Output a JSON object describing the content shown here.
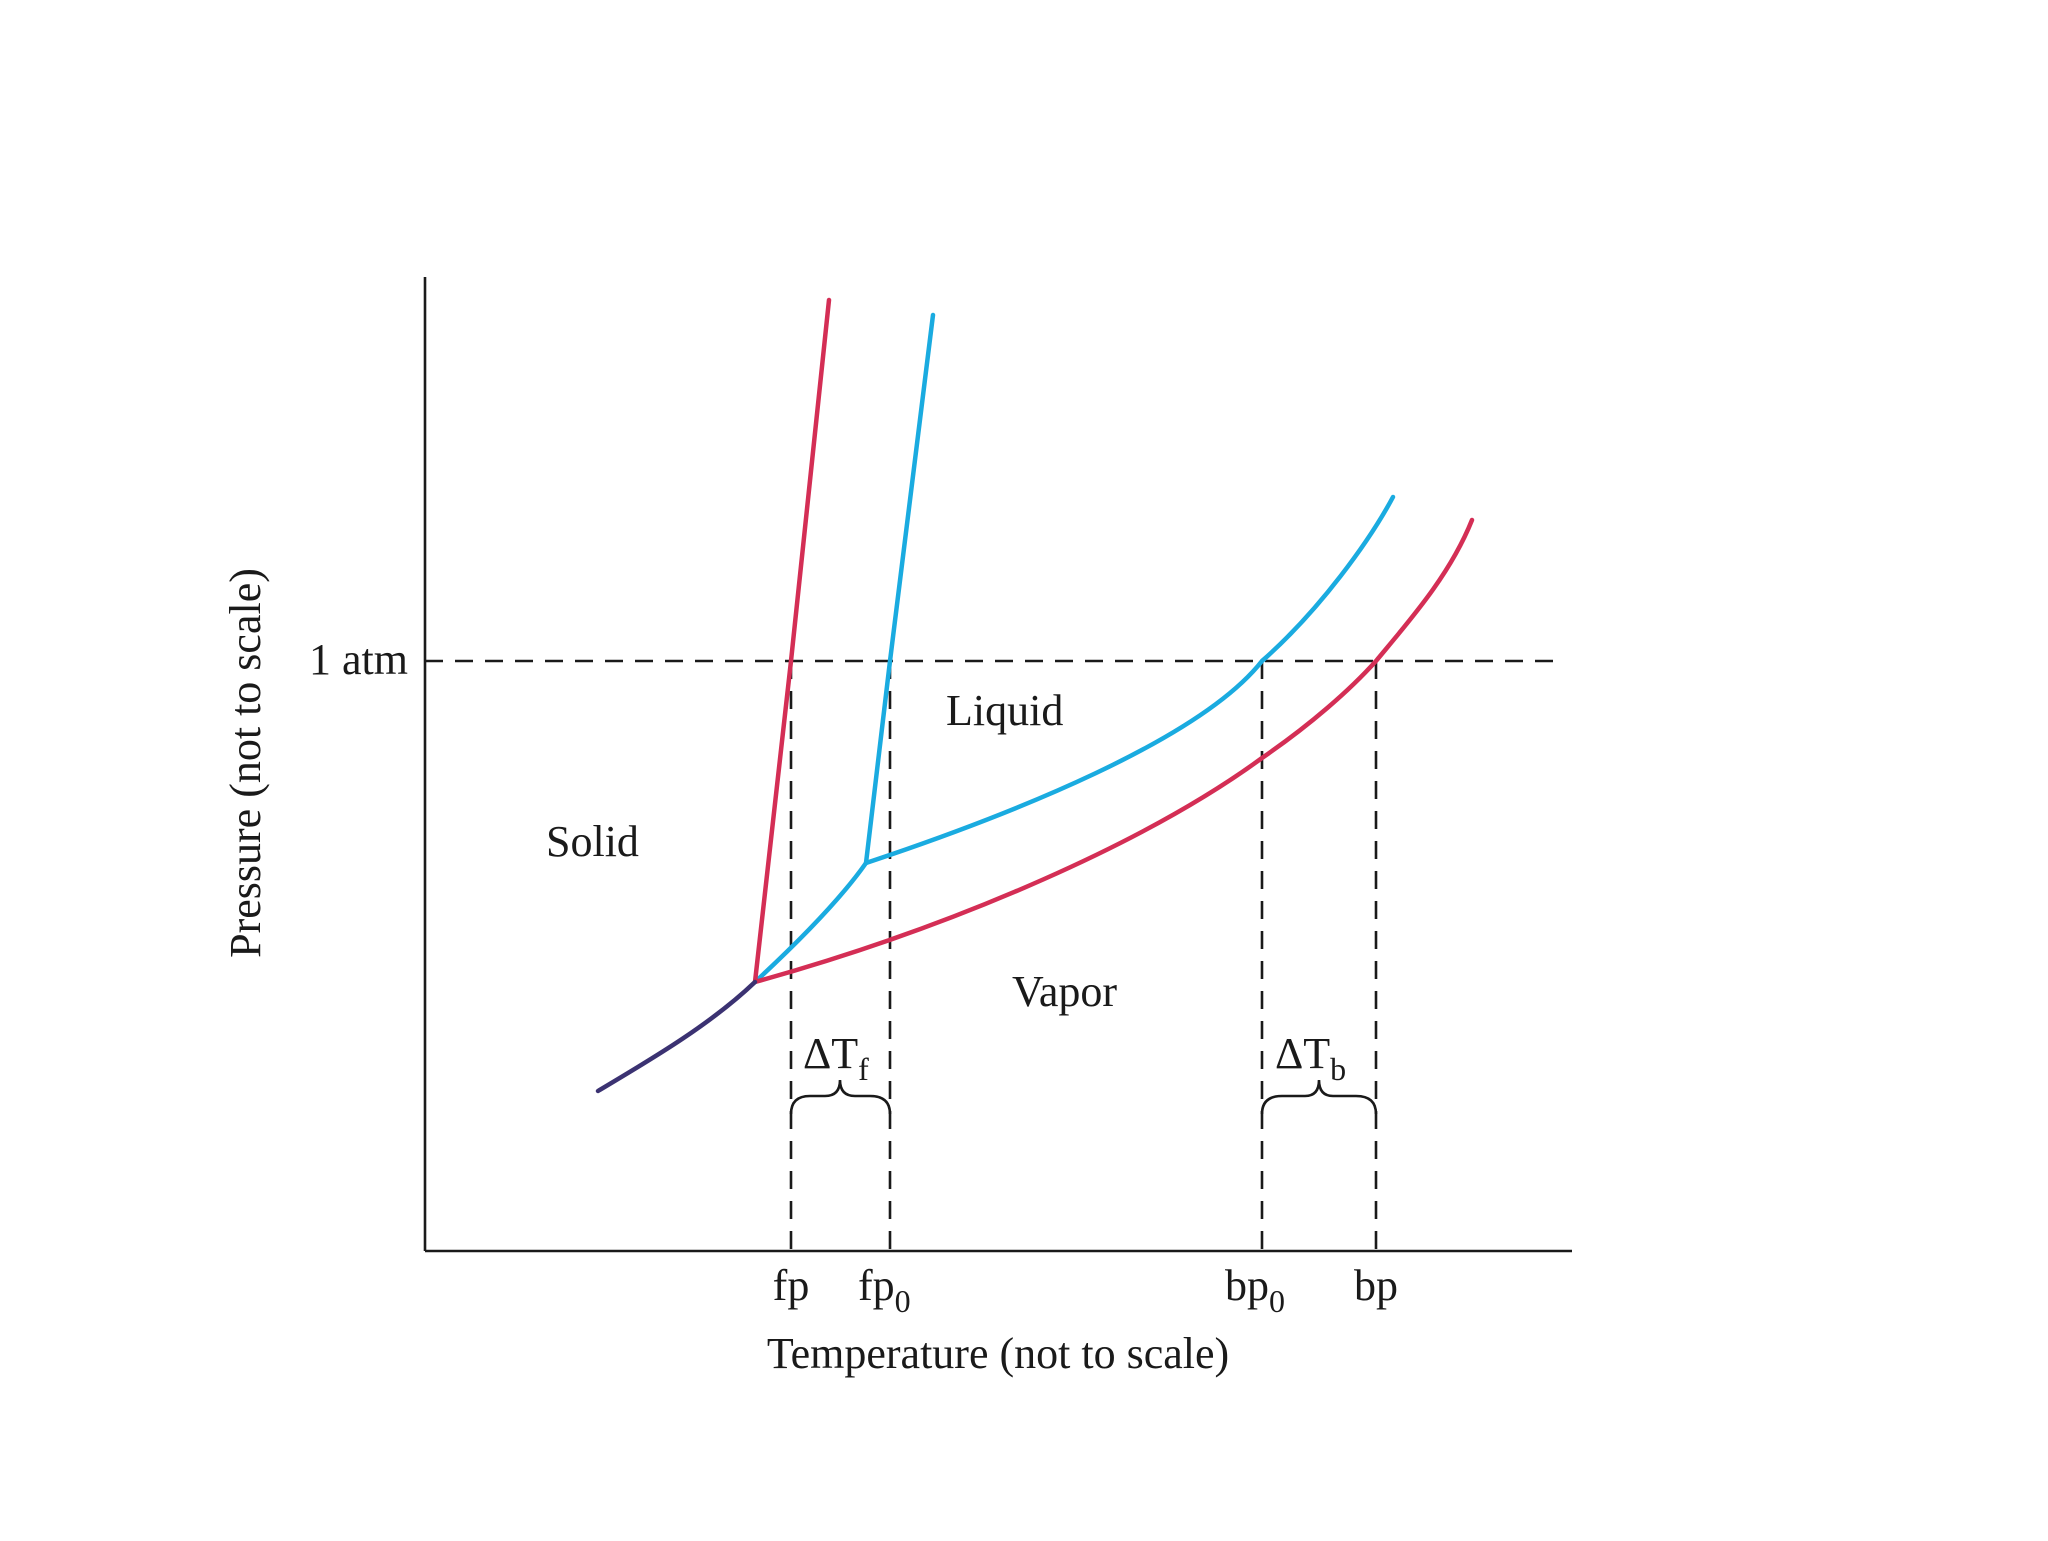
{
  "labels": {
    "regions": {
      "solid": "Solid",
      "liquid": "Liquid",
      "vapor": "Vapor"
    },
    "pressure_tick": "1 atm",
    "x_ticks": {
      "fp": "fp",
      "fp0_main": "fp",
      "fp0_sub": "0",
      "bp0_main": "bp",
      "bp0_sub": "0",
      "bp": "bp"
    },
    "delta_f": {
      "symbol": "ΔT",
      "sub": "f"
    },
    "delta_b": {
      "symbol": "ΔT",
      "sub": "b"
    },
    "x_axis_title": "Temperature (not to scale)",
    "y_axis_title": "Pressure (not to scale)"
  },
  "colors": {
    "solution_curves": "#d42e55",
    "pure_solvent_curves": "#1aabe0",
    "sublimation_curve": "#3b3272",
    "axes": "#1a1a1a"
  }
}
